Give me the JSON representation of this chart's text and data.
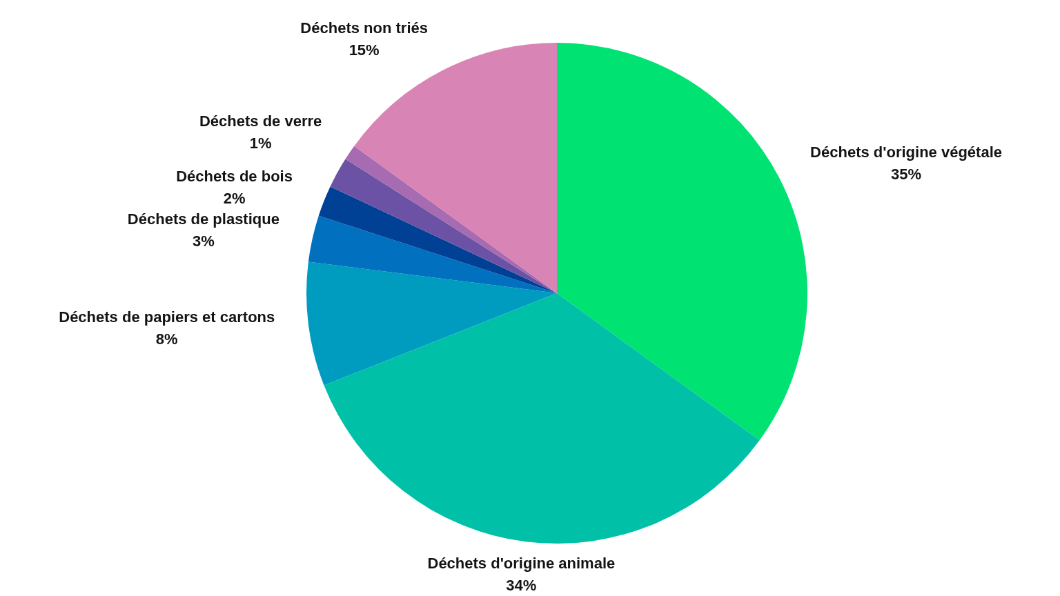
{
  "chart_data": {
    "type": "pie",
    "categories": [
      "Déchets d'origine végétale",
      "Déchets d'origine animale",
      "Déchets de papiers et cartons",
      "Déchets de plastique",
      "Déchets de bois",
      null,
      "Déchets de verre",
      "Déchets non triés"
    ],
    "values": [
      35,
      34,
      8,
      3,
      2,
      2,
      1,
      15
    ],
    "value_labels": [
      "35%",
      "34%",
      "8%",
      "3%",
      "2%",
      null,
      "1%",
      "15%"
    ],
    "colors": [
      "#00e272",
      "#00c1a8",
      "#009cc0",
      "#0070bf",
      "#004196",
      "#6b52a5",
      "#a66bb0",
      "#d884b4"
    ]
  }
}
